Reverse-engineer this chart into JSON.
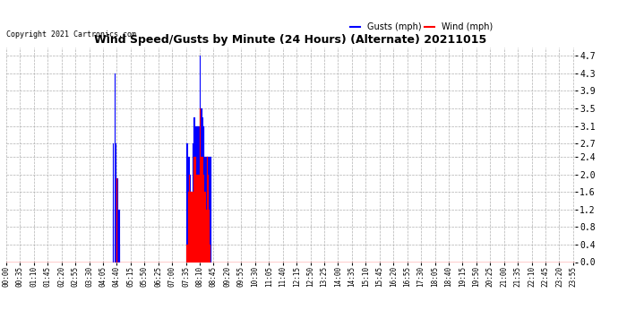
{
  "title": "Wind Speed/Gusts by Minute (24 Hours) (Alternate) 20211015",
  "copyright": "Copyright 2021 Cartronics.com",
  "legend_gusts": "Gusts (mph)",
  "legend_wind": "Wind (mph)",
  "gust_color": "#0000ff",
  "wind_color": "#ff0000",
  "background_color": "#ffffff",
  "grid_color": "#b0b0b0",
  "ylim": [
    0.0,
    4.9
  ],
  "yticks": [
    0.0,
    0.4,
    0.8,
    1.2,
    1.6,
    2.0,
    2.4,
    2.7,
    3.1,
    3.5,
    3.9,
    4.3,
    4.7
  ],
  "total_minutes": 1440,
  "gusts_data": [
    [
      270,
      1.2
    ],
    [
      271,
      2.7
    ],
    [
      275,
      4.3
    ],
    [
      276,
      2.7
    ],
    [
      278,
      1.9
    ],
    [
      279,
      1.9
    ],
    [
      280,
      1.9
    ],
    [
      281,
      1.9
    ],
    [
      282,
      1.2
    ],
    [
      283,
      1.2
    ],
    [
      284,
      0.4
    ],
    [
      285,
      0.4
    ],
    [
      286,
      1.2
    ],
    [
      456,
      2.7
    ],
    [
      457,
      2.7
    ],
    [
      458,
      2.4
    ],
    [
      459,
      2.4
    ],
    [
      460,
      2.4
    ],
    [
      461,
      2.4
    ],
    [
      462,
      2.4
    ],
    [
      463,
      2.0
    ],
    [
      464,
      2.0
    ],
    [
      465,
      2.0
    ],
    [
      466,
      1.6
    ],
    [
      467,
      1.6
    ],
    [
      468,
      1.2
    ],
    [
      469,
      1.2
    ],
    [
      470,
      1.2
    ],
    [
      471,
      1.2
    ],
    [
      472,
      2.7
    ],
    [
      473,
      2.7
    ],
    [
      474,
      2.7
    ],
    [
      475,
      3.3
    ],
    [
      476,
      3.3
    ],
    [
      477,
      3.1
    ],
    [
      478,
      3.1
    ],
    [
      479,
      3.1
    ],
    [
      480,
      3.1
    ],
    [
      481,
      3.1
    ],
    [
      482,
      3.1
    ],
    [
      483,
      3.1
    ],
    [
      484,
      3.1
    ],
    [
      485,
      3.1
    ],
    [
      486,
      3.1
    ],
    [
      487,
      3.1
    ],
    [
      488,
      3.1
    ],
    [
      489,
      3.1
    ],
    [
      490,
      4.7
    ],
    [
      491,
      3.5
    ],
    [
      492,
      3.5
    ],
    [
      493,
      3.5
    ],
    [
      494,
      3.5
    ],
    [
      495,
      3.5
    ],
    [
      496,
      3.3
    ],
    [
      497,
      3.1
    ],
    [
      498,
      3.1
    ],
    [
      499,
      3.1
    ],
    [
      500,
      3.1
    ],
    [
      501,
      2.4
    ],
    [
      502,
      2.4
    ],
    [
      503,
      2.4
    ],
    [
      504,
      2.4
    ],
    [
      505,
      2.4
    ],
    [
      506,
      2.4
    ],
    [
      507,
      2.4
    ],
    [
      508,
      2.4
    ],
    [
      509,
      2.4
    ],
    [
      510,
      2.4
    ],
    [
      511,
      2.4
    ],
    [
      512,
      2.4
    ],
    [
      513,
      2.4
    ],
    [
      514,
      2.4
    ],
    [
      515,
      2.4
    ],
    [
      516,
      2.4
    ],
    [
      517,
      2.4
    ]
  ],
  "wind_data": [
    [
      278,
      0.4
    ],
    [
      279,
      1.9
    ],
    [
      280,
      1.9
    ],
    [
      456,
      0.4
    ],
    [
      457,
      0.4
    ],
    [
      458,
      0.4
    ],
    [
      459,
      0.4
    ],
    [
      460,
      1.6
    ],
    [
      461,
      1.6
    ],
    [
      462,
      2.0
    ],
    [
      463,
      2.0
    ],
    [
      464,
      1.6
    ],
    [
      465,
      1.6
    ],
    [
      466,
      1.6
    ],
    [
      467,
      1.6
    ],
    [
      468,
      1.6
    ],
    [
      469,
      1.6
    ],
    [
      470,
      1.6
    ],
    [
      471,
      1.6
    ],
    [
      472,
      1.6
    ],
    [
      473,
      1.6
    ],
    [
      474,
      1.6
    ],
    [
      475,
      2.4
    ],
    [
      476,
      2.4
    ],
    [
      477,
      2.4
    ],
    [
      478,
      2.4
    ],
    [
      479,
      2.4
    ],
    [
      480,
      2.0
    ],
    [
      481,
      2.0
    ],
    [
      482,
      2.0
    ],
    [
      483,
      2.0
    ],
    [
      484,
      2.0
    ],
    [
      485,
      2.0
    ],
    [
      486,
      2.0
    ],
    [
      487,
      2.0
    ],
    [
      488,
      1.6
    ],
    [
      489,
      1.6
    ],
    [
      490,
      3.5
    ],
    [
      491,
      2.4
    ],
    [
      492,
      2.4
    ],
    [
      493,
      2.4
    ],
    [
      494,
      2.4
    ],
    [
      495,
      2.4
    ],
    [
      496,
      2.4
    ],
    [
      497,
      2.0
    ],
    [
      498,
      2.0
    ],
    [
      499,
      1.6
    ],
    [
      500,
      1.6
    ],
    [
      501,
      1.6
    ],
    [
      502,
      1.6
    ],
    [
      503,
      1.6
    ],
    [
      504,
      1.2
    ],
    [
      505,
      1.2
    ],
    [
      506,
      0.8
    ],
    [
      507,
      0.4
    ],
    [
      508,
      2.4
    ],
    [
      509,
      2.4
    ],
    [
      510,
      2.0
    ],
    [
      511,
      1.6
    ],
    [
      512,
      1.2
    ],
    [
      513,
      0.8
    ],
    [
      514,
      0.4
    ]
  ]
}
